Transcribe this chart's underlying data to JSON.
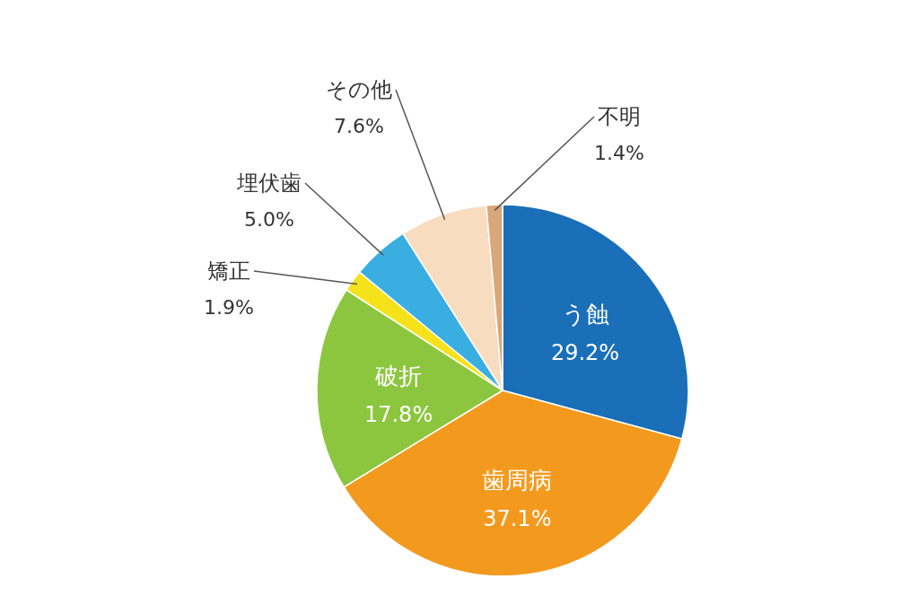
{
  "chart_data": {
    "type": "pie",
    "categories": [
      "う蝕",
      "歯周病",
      "破折",
      "矯正",
      "埋伏歯",
      "その他",
      "不明"
    ],
    "values": [
      29.2,
      37.1,
      17.8,
      1.9,
      5.0,
      7.6,
      1.4
    ],
    "colors": [
      "#1a6fb8",
      "#f39a1e",
      "#8cc63f",
      "#f5e21a",
      "#3aaee0",
      "#f8dcc0",
      "#d9a77a"
    ],
    "value_labels": [
      "29.2%",
      "37.1%",
      "17.8%",
      "1.9%",
      "5.0%",
      "7.6%",
      "1.4%"
    ]
  }
}
